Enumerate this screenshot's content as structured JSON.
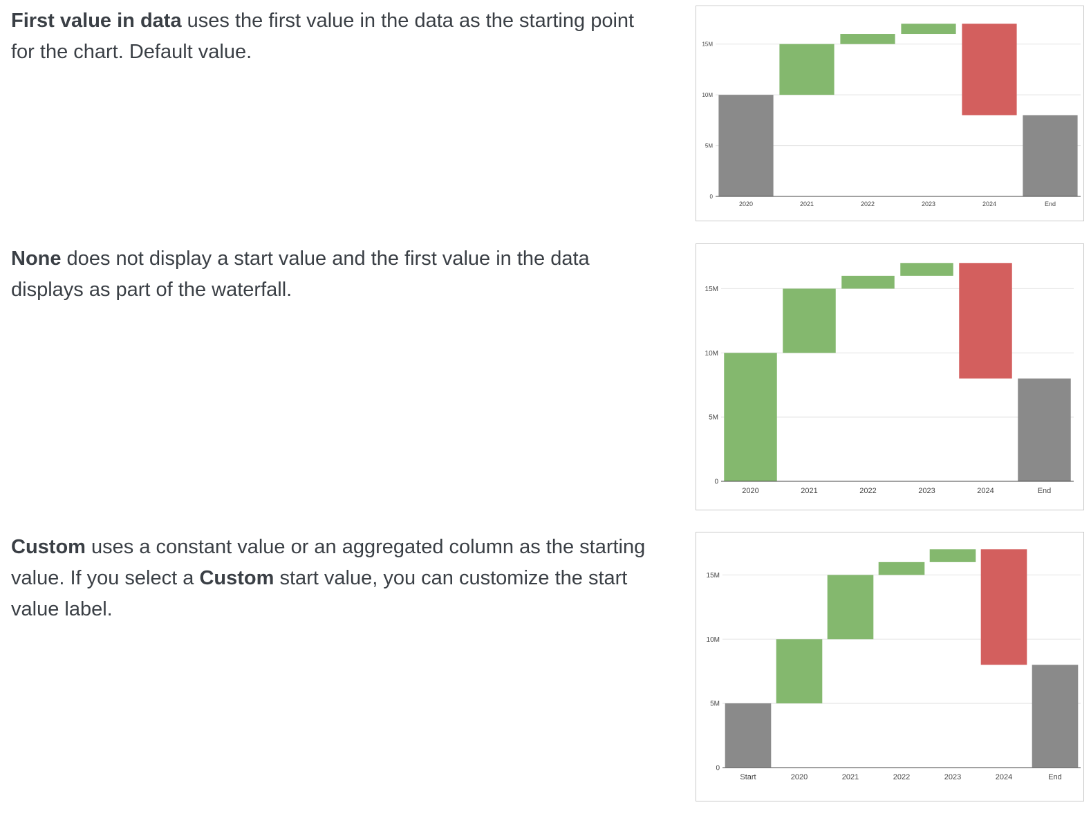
{
  "sections": [
    {
      "term": "First value in data",
      "text": " uses the first value in the data as the starting point for the chart. Default value."
    },
    {
      "term": "None",
      "text": " does not display a start value and the first value in the data displays as part of the waterfall."
    },
    {
      "term": "Custom",
      "text_a": " uses a constant value or an aggregated column as the starting value. If you select a ",
      "term2": "Custom",
      "text_b": " start value, you can customize the start value label."
    }
  ],
  "colors": {
    "increase": "#84b86e",
    "decrease": "#d35f5e",
    "total": "#8a8a8a",
    "gridline": "#e3e3e3",
    "axis": "#444444"
  },
  "chart_data": [
    {
      "type": "bar",
      "variant": "waterfall",
      "title": "",
      "xlabel": "",
      "ylabel": "",
      "categories": [
        "2020",
        "2021",
        "2022",
        "2023",
        "2024",
        "End"
      ],
      "bars": [
        {
          "label": "2020",
          "from": 0,
          "to": 10000000,
          "kind": "total"
        },
        {
          "label": "2021",
          "from": 10000000,
          "to": 15000000,
          "kind": "increase"
        },
        {
          "label": "2022",
          "from": 15000000,
          "to": 16000000,
          "kind": "increase"
        },
        {
          "label": "2023",
          "from": 16000000,
          "to": 17000000,
          "kind": "increase"
        },
        {
          "label": "2024",
          "from": 17000000,
          "to": 8000000,
          "kind": "decrease"
        },
        {
          "label": "End",
          "from": 0,
          "to": 8000000,
          "kind": "total"
        }
      ],
      "yticks": [
        0,
        5000000,
        10000000,
        15000000
      ],
      "ytick_labels": [
        "0",
        "5M",
        "10M",
        "15M"
      ],
      "ylim": [
        0,
        17500000
      ],
      "grid": true
    },
    {
      "type": "bar",
      "variant": "waterfall",
      "title": "",
      "xlabel": "",
      "ylabel": "",
      "categories": [
        "2020",
        "2021",
        "2022",
        "2023",
        "2024",
        "End"
      ],
      "bars": [
        {
          "label": "2020",
          "from": 0,
          "to": 10000000,
          "kind": "increase"
        },
        {
          "label": "2021",
          "from": 10000000,
          "to": 15000000,
          "kind": "increase"
        },
        {
          "label": "2022",
          "from": 15000000,
          "to": 16000000,
          "kind": "increase"
        },
        {
          "label": "2023",
          "from": 16000000,
          "to": 17000000,
          "kind": "increase"
        },
        {
          "label": "2024",
          "from": 17000000,
          "to": 8000000,
          "kind": "decrease"
        },
        {
          "label": "End",
          "from": 0,
          "to": 8000000,
          "kind": "total"
        }
      ],
      "yticks": [
        0,
        5000000,
        10000000,
        15000000
      ],
      "ytick_labels": [
        "0",
        "5M",
        "10M",
        "15M"
      ],
      "ylim": [
        0,
        17500000
      ],
      "grid": true
    },
    {
      "type": "bar",
      "variant": "waterfall",
      "title": "",
      "xlabel": "",
      "ylabel": "",
      "categories": [
        "Start",
        "2020",
        "2021",
        "2022",
        "2023",
        "2024",
        "End"
      ],
      "bars": [
        {
          "label": "Start",
          "from": 0,
          "to": 5000000,
          "kind": "total"
        },
        {
          "label": "2020",
          "from": 5000000,
          "to": 10000000,
          "kind": "increase"
        },
        {
          "label": "2021",
          "from": 10000000,
          "to": 15000000,
          "kind": "increase"
        },
        {
          "label": "2022",
          "from": 15000000,
          "to": 16000000,
          "kind": "increase"
        },
        {
          "label": "2023",
          "from": 16000000,
          "to": 17000000,
          "kind": "increase"
        },
        {
          "label": "2024",
          "from": 17000000,
          "to": 8000000,
          "kind": "decrease"
        },
        {
          "label": "End",
          "from": 0,
          "to": 8000000,
          "kind": "total"
        }
      ],
      "yticks": [
        0,
        5000000,
        10000000,
        15000000
      ],
      "ytick_labels": [
        "0",
        "5M",
        "10M",
        "15M"
      ],
      "ylim": [
        0,
        17500000
      ],
      "grid": true
    }
  ]
}
